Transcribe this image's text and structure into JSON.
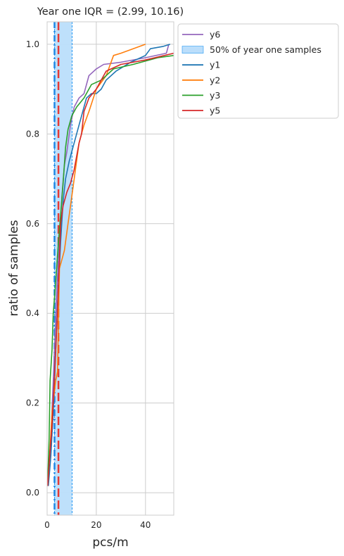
{
  "chart_data": {
    "type": "line",
    "title": "Year one IQR = (2.99, 10.16)",
    "xlabel": "pcs/m",
    "ylabel": "ratio of samples",
    "xlim": [
      0,
      51.5
    ],
    "ylim": [
      -0.05,
      1.05
    ],
    "xticks": [
      0,
      20,
      40
    ],
    "yticks": [
      0.0,
      0.2,
      0.4,
      0.6,
      0.8,
      1.0
    ],
    "grid": true,
    "legend_position": "outside top-right",
    "iqr_band": {
      "label": "50% of year one samples",
      "x0": 2.99,
      "x1": 10.16,
      "fill": "#bbdefb",
      "edge": "#2196f3"
    },
    "reference_lines": [
      {
        "x": 3.0,
        "color": "#1e88e5",
        "style": "dashdot"
      },
      {
        "x": 4.6,
        "color": "#e53935",
        "style": "dashed"
      }
    ],
    "legend": [
      "y6",
      "50% of year one samples",
      "y1",
      "y2",
      "y3",
      "y5"
    ],
    "series": [
      {
        "name": "y6",
        "color": "#9467bd",
        "points": [
          [
            0.3,
            0.02
          ],
          [
            1.5,
            0.12
          ],
          [
            2.5,
            0.25
          ],
          [
            3.2,
            0.35
          ],
          [
            4.0,
            0.46
          ],
          [
            5.0,
            0.56
          ],
          [
            6.0,
            0.66
          ],
          [
            7.0,
            0.73
          ],
          [
            8.0,
            0.76
          ],
          [
            9.5,
            0.82
          ],
          [
            11.0,
            0.86
          ],
          [
            13.0,
            0.88
          ],
          [
            15.0,
            0.89
          ],
          [
            17.0,
            0.93
          ],
          [
            20.0,
            0.945
          ],
          [
            23.0,
            0.955
          ],
          [
            30.0,
            0.96
          ],
          [
            40.0,
            0.97
          ],
          [
            48.5,
            0.98
          ],
          [
            49.5,
            1.0
          ]
        ]
      },
      {
        "name": "y1",
        "color": "#1f77b4",
        "points": [
          [
            0.5,
            0.015
          ],
          [
            1.5,
            0.08
          ],
          [
            2.5,
            0.18
          ],
          [
            3.5,
            0.32
          ],
          [
            4.5,
            0.45
          ],
          [
            5.5,
            0.56
          ],
          [
            6.5,
            0.65
          ],
          [
            7.5,
            0.7
          ],
          [
            9.0,
            0.74
          ],
          [
            11.0,
            0.78
          ],
          [
            13.0,
            0.82
          ],
          [
            14.0,
            0.84
          ],
          [
            16.0,
            0.88
          ],
          [
            18.0,
            0.89
          ],
          [
            20.0,
            0.89
          ],
          [
            22.0,
            0.9
          ],
          [
            24.0,
            0.92
          ],
          [
            28.0,
            0.94
          ],
          [
            34.0,
            0.96
          ],
          [
            40.0,
            0.975
          ],
          [
            42.0,
            0.99
          ],
          [
            47.0,
            0.995
          ],
          [
            50.0,
            1.0
          ]
        ]
      },
      {
        "name": "y2",
        "color": "#ff7f0e",
        "points": [
          [
            0.3,
            0.02
          ],
          [
            1.0,
            0.08
          ],
          [
            2.0,
            0.18
          ],
          [
            3.5,
            0.25
          ],
          [
            4.2,
            0.27
          ],
          [
            4.5,
            0.35
          ],
          [
            5.0,
            0.5
          ],
          [
            6.0,
            0.52
          ],
          [
            7.0,
            0.54
          ],
          [
            8.5,
            0.6
          ],
          [
            10.0,
            0.66
          ],
          [
            11.5,
            0.72
          ],
          [
            13.0,
            0.78
          ],
          [
            15.0,
            0.82
          ],
          [
            17.0,
            0.85
          ],
          [
            20.0,
            0.9
          ],
          [
            24.0,
            0.93
          ],
          [
            27.0,
            0.975
          ],
          [
            30.0,
            0.98
          ],
          [
            40.0,
            1.0
          ]
        ]
      },
      {
        "name": "y3",
        "color": "#2ca02c",
        "points": [
          [
            0.2,
            0.02
          ],
          [
            0.8,
            0.12
          ],
          [
            1.2,
            0.25
          ],
          [
            2.0,
            0.32
          ],
          [
            2.5,
            0.4
          ],
          [
            3.5,
            0.47
          ],
          [
            4.5,
            0.55
          ],
          [
            5.5,
            0.62
          ],
          [
            6.5,
            0.69
          ],
          [
            7.5,
            0.77
          ],
          [
            8.5,
            0.81
          ],
          [
            10.0,
            0.84
          ],
          [
            12.0,
            0.86
          ],
          [
            15.0,
            0.88
          ],
          [
            18.0,
            0.91
          ],
          [
            22.0,
            0.92
          ],
          [
            27.0,
            0.945
          ],
          [
            35.0,
            0.955
          ],
          [
            45.0,
            0.97
          ],
          [
            51.5,
            0.975
          ]
        ]
      },
      {
        "name": "y5",
        "color": "#d62728",
        "points": [
          [
            0.2,
            0.015
          ],
          [
            1.0,
            0.08
          ],
          [
            2.0,
            0.15
          ],
          [
            3.0,
            0.26
          ],
          [
            4.0,
            0.38
          ],
          [
            5.0,
            0.52
          ],
          [
            5.5,
            0.6
          ],
          [
            6.5,
            0.64
          ],
          [
            8.0,
            0.67
          ],
          [
            9.5,
            0.69
          ],
          [
            11.0,
            0.72
          ],
          [
            12.0,
            0.75
          ],
          [
            13.0,
            0.78
          ],
          [
            14.0,
            0.8
          ],
          [
            15.0,
            0.85
          ],
          [
            17.0,
            0.88
          ],
          [
            20.0,
            0.9
          ],
          [
            22.0,
            0.92
          ],
          [
            24.0,
            0.94
          ],
          [
            30.0,
            0.955
          ],
          [
            40.0,
            0.965
          ],
          [
            51.5,
            0.98
          ]
        ]
      }
    ]
  }
}
